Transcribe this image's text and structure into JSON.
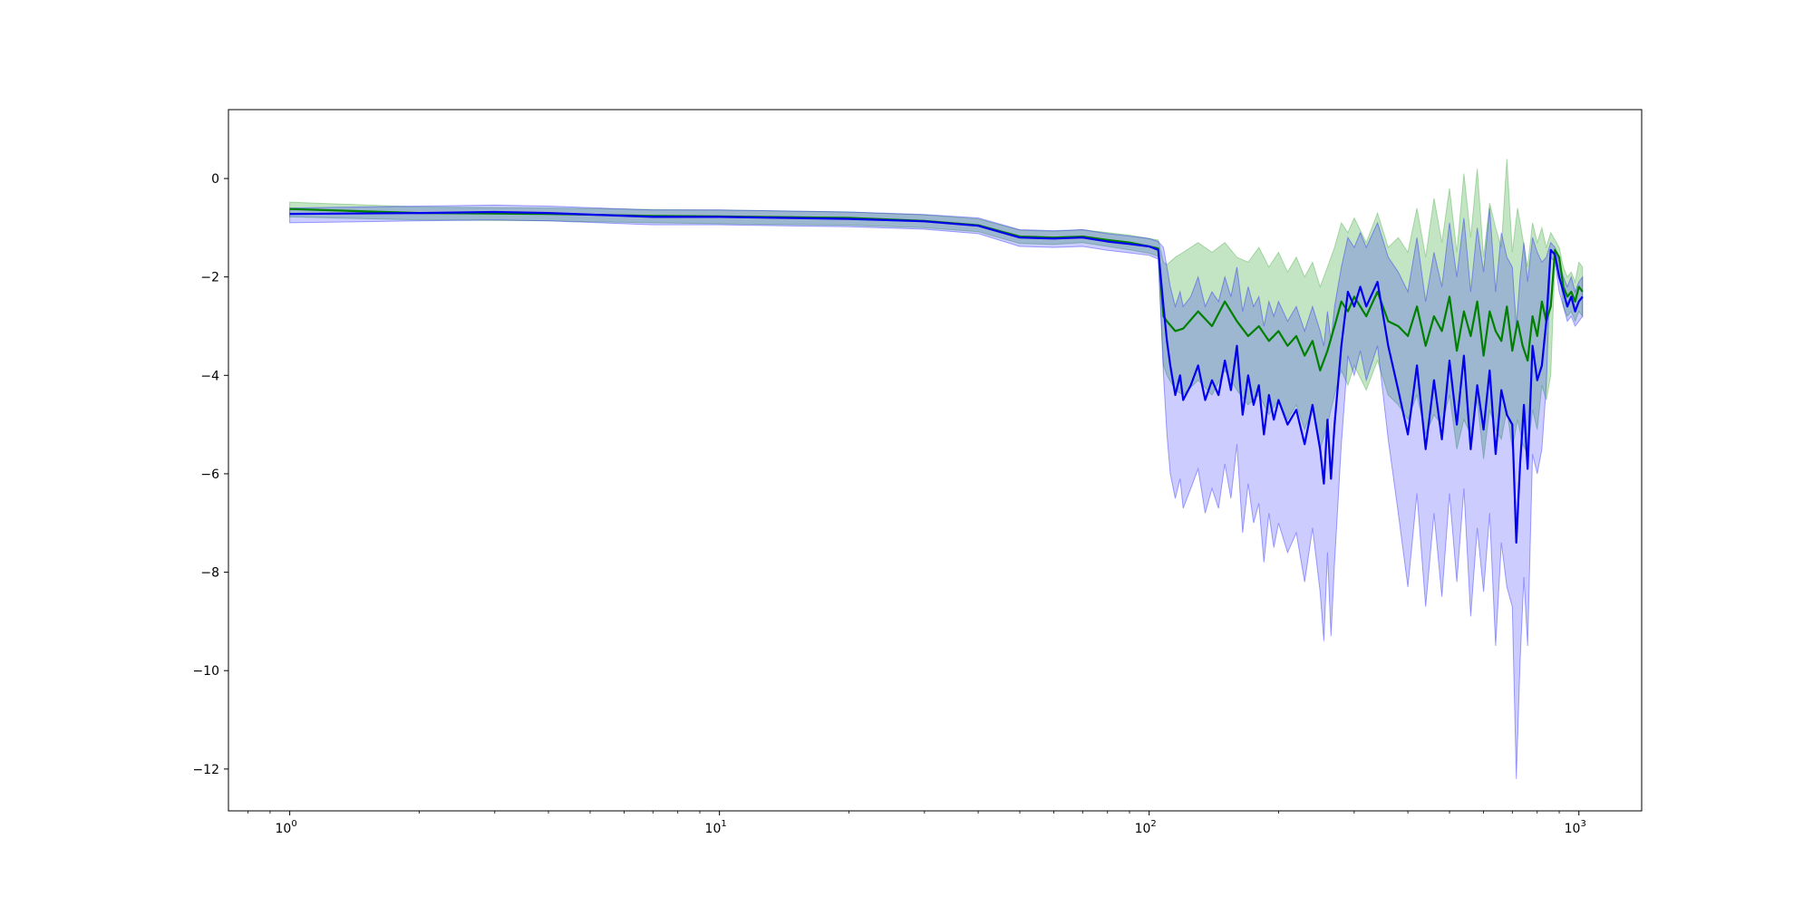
{
  "chart_data": {
    "type": "line",
    "title": "",
    "xlabel": "",
    "ylabel": "",
    "x_scale": "log",
    "xlim": [
      0.72,
      1400
    ],
    "ylim": [
      -12.85,
      1.4
    ],
    "grid": false,
    "legend": "none",
    "x_ticks": [
      {
        "value": 1,
        "base": "10",
        "exp": "0"
      },
      {
        "value": 10,
        "base": "10",
        "exp": "1"
      },
      {
        "value": 100,
        "base": "10",
        "exp": "2"
      },
      {
        "value": 1000,
        "base": "10",
        "exp": "3"
      }
    ],
    "y_ticks": [
      {
        "value": 0,
        "label": "0"
      },
      {
        "value": -2,
        "label": "−2"
      },
      {
        "value": -4,
        "label": "−4"
      },
      {
        "value": -6,
        "label": "−6"
      },
      {
        "value": -8,
        "label": "−8"
      },
      {
        "value": -10,
        "label": "−10"
      },
      {
        "value": -12,
        "label": "−12"
      }
    ],
    "series": [
      {
        "color": "#008000",
        "band_color": "#2ca02c",
        "band_opacity": 0.28,
        "x": [
          1,
          2,
          4,
          7,
          10,
          20,
          30,
          40,
          50,
          60,
          70,
          80,
          90,
          100,
          105,
          108,
          110,
          115,
          120,
          130,
          140,
          150,
          160,
          170,
          180,
          190,
          200,
          210,
          220,
          230,
          240,
          250,
          260,
          270,
          280,
          290,
          300,
          320,
          340,
          360,
          380,
          400,
          420,
          440,
          460,
          480,
          500,
          520,
          540,
          560,
          580,
          600,
          620,
          640,
          660,
          680,
          700,
          720,
          740,
          760,
          780,
          800,
          820,
          840,
          860,
          880,
          900,
          920,
          940,
          960,
          980,
          1000,
          1020
        ],
        "y": [
          -0.62,
          -0.7,
          -0.72,
          -0.76,
          -0.77,
          -0.8,
          -0.86,
          -0.95,
          -1.18,
          -1.2,
          -1.18,
          -1.25,
          -1.3,
          -1.38,
          -1.42,
          -2.8,
          -2.9,
          -3.1,
          -3.05,
          -2.7,
          -3.0,
          -2.5,
          -2.9,
          -3.2,
          -3.0,
          -3.3,
          -3.1,
          -3.4,
          -3.2,
          -3.6,
          -3.3,
          -3.9,
          -3.5,
          -3.0,
          -2.5,
          -2.7,
          -2.4,
          -2.8,
          -2.3,
          -2.9,
          -3.0,
          -3.2,
          -2.6,
          -3.4,
          -2.8,
          -3.1,
          -2.4,
          -3.5,
          -2.7,
          -3.2,
          -2.5,
          -3.6,
          -2.7,
          -3.1,
          -3.3,
          -2.6,
          -3.5,
          -2.9,
          -3.4,
          -3.7,
          -2.8,
          -3.2,
          -2.5,
          -2.9,
          -2.6,
          -1.45,
          -1.6,
          -2.2,
          -2.4,
          -2.3,
          -2.5,
          -2.2,
          -2.3
        ],
        "upper": [
          -0.48,
          -0.58,
          -0.6,
          -0.63,
          -0.64,
          -0.68,
          -0.74,
          -0.82,
          -1.05,
          -1.07,
          -1.04,
          -1.1,
          -1.15,
          -1.22,
          -1.25,
          -1.7,
          -1.75,
          -1.6,
          -1.5,
          -1.3,
          -1.5,
          -1.3,
          -1.6,
          -1.7,
          -1.4,
          -1.8,
          -1.5,
          -1.9,
          -1.6,
          -2.0,
          -1.7,
          -2.2,
          -1.8,
          -1.4,
          -0.9,
          -1.1,
          -0.8,
          -1.3,
          -0.7,
          -1.4,
          -1.2,
          -1.5,
          -0.6,
          -1.6,
          -0.4,
          -1.3,
          -0.2,
          -1.5,
          0.1,
          -1.2,
          0.2,
          -1.6,
          -0.5,
          -1.0,
          -1.4,
          0.4,
          -1.5,
          -0.6,
          -1.2,
          -1.8,
          -0.9,
          -1.3,
          -1.0,
          -1.4,
          -1.1,
          -1.25,
          -1.4,
          -1.8,
          -2.0,
          -1.9,
          -2.1,
          -1.7,
          -1.8
        ],
        "lower": [
          -0.78,
          -0.84,
          -0.86,
          -0.9,
          -0.92,
          -0.95,
          -1.0,
          -1.08,
          -1.32,
          -1.34,
          -1.3,
          -1.38,
          -1.45,
          -1.52,
          -1.58,
          -3.8,
          -4.0,
          -4.3,
          -4.4,
          -4.1,
          -4.4,
          -3.9,
          -4.3,
          -4.6,
          -4.4,
          -4.8,
          -4.5,
          -4.9,
          -4.6,
          -5.1,
          -4.7,
          -5.5,
          -5.0,
          -4.4,
          -3.9,
          -4.2,
          -3.8,
          -4.3,
          -3.7,
          -4.4,
          -4.6,
          -4.9,
          -4.4,
          -5.2,
          -4.8,
          -5.0,
          -4.4,
          -5.5,
          -4.9,
          -5.2,
          -4.5,
          -5.7,
          -4.7,
          -5.1,
          -5.3,
          -4.7,
          -5.5,
          -4.9,
          -5.4,
          -5.6,
          -4.7,
          -5.1,
          -4.2,
          -4.5,
          -4.0,
          -1.65,
          -1.8,
          -2.6,
          -2.8,
          -2.7,
          -2.9,
          -2.7,
          -2.8
        ]
      },
      {
        "color": "#0000ee",
        "band_color": "#0000ff",
        "band_opacity": 0.2,
        "x": [
          1,
          2,
          3,
          4,
          7,
          10,
          20,
          30,
          40,
          50,
          60,
          70,
          80,
          90,
          100,
          105,
          108,
          110,
          112,
          115,
          118,
          120,
          125,
          130,
          135,
          140,
          145,
          150,
          155,
          160,
          165,
          170,
          175,
          180,
          185,
          190,
          195,
          200,
          210,
          220,
          230,
          240,
          250,
          255,
          260,
          265,
          270,
          280,
          290,
          300,
          310,
          320,
          340,
          360,
          380,
          400,
          420,
          440,
          460,
          480,
          500,
          520,
          540,
          560,
          580,
          600,
          620,
          640,
          660,
          680,
          700,
          715,
          730,
          745,
          760,
          780,
          800,
          820,
          840,
          860,
          880,
          900,
          920,
          940,
          960,
          980,
          1000,
          1020
        ],
        "y": [
          -0.72,
          -0.7,
          -0.68,
          -0.7,
          -0.78,
          -0.78,
          -0.82,
          -0.87,
          -0.96,
          -1.2,
          -1.22,
          -1.2,
          -1.28,
          -1.33,
          -1.38,
          -1.45,
          -2.6,
          -3.3,
          -3.8,
          -4.4,
          -4.0,
          -4.5,
          -4.2,
          -3.8,
          -4.5,
          -4.1,
          -4.4,
          -3.7,
          -4.3,
          -3.4,
          -4.8,
          -4.0,
          -4.6,
          -4.2,
          -5.2,
          -4.4,
          -4.9,
          -4.5,
          -5.0,
          -4.7,
          -5.4,
          -4.6,
          -5.5,
          -6.2,
          -4.9,
          -6.1,
          -5.0,
          -3.4,
          -2.3,
          -2.6,
          -2.2,
          -2.6,
          -2.1,
          -3.4,
          -4.3,
          -5.2,
          -3.8,
          -5.5,
          -4.1,
          -5.3,
          -3.7,
          -5.0,
          -3.6,
          -5.5,
          -4.2,
          -5.1,
          -3.9,
          -5.6,
          -4.3,
          -4.8,
          -5.0,
          -7.4,
          -5.8,
          -4.6,
          -5.9,
          -3.4,
          -4.1,
          -3.8,
          -2.9,
          -1.45,
          -1.55,
          -2.0,
          -2.3,
          -2.6,
          -2.4,
          -2.7,
          -2.5,
          -2.4
        ],
        "upper": [
          -0.6,
          -0.56,
          -0.54,
          -0.56,
          -0.64,
          -0.64,
          -0.68,
          -0.73,
          -0.8,
          -1.04,
          -1.06,
          -1.04,
          -1.12,
          -1.17,
          -1.22,
          -1.28,
          -1.4,
          -1.8,
          -2.2,
          -2.6,
          -2.3,
          -2.6,
          -2.4,
          -2.0,
          -2.6,
          -2.3,
          -2.5,
          -2.0,
          -2.4,
          -1.8,
          -2.7,
          -2.2,
          -2.6,
          -2.4,
          -3.0,
          -2.5,
          -2.8,
          -2.5,
          -2.9,
          -2.6,
          -3.1,
          -2.6,
          -3.1,
          -3.4,
          -2.7,
          -3.3,
          -2.6,
          -1.8,
          -1.2,
          -1.4,
          -1.1,
          -1.4,
          -0.9,
          -1.6,
          -1.9,
          -2.3,
          -1.2,
          -2.5,
          -1.5,
          -2.2,
          -0.9,
          -2.0,
          -0.8,
          -2.3,
          -1.0,
          -1.9,
          -0.6,
          -2.3,
          -1.1,
          -1.6,
          -1.8,
          -3.0,
          -2.0,
          -1.3,
          -2.1,
          -1.2,
          -1.5,
          -1.7,
          -1.6,
          -1.3,
          -1.4,
          -1.7,
          -2.0,
          -2.2,
          -2.0,
          -2.3,
          -2.1,
          -2.0
        ],
        "lower": [
          -0.9,
          -0.86,
          -0.84,
          -0.86,
          -0.94,
          -0.94,
          -0.98,
          -1.03,
          -1.12,
          -1.38,
          -1.4,
          -1.38,
          -1.46,
          -1.51,
          -1.56,
          -1.64,
          -4.0,
          -5.2,
          -6.0,
          -6.5,
          -6.1,
          -6.7,
          -6.3,
          -5.9,
          -6.8,
          -6.3,
          -6.7,
          -5.8,
          -6.5,
          -5.4,
          -7.2,
          -6.2,
          -7.0,
          -6.6,
          -7.8,
          -6.8,
          -7.5,
          -7.0,
          -7.6,
          -7.2,
          -8.2,
          -7.1,
          -8.4,
          -9.4,
          -7.6,
          -9.3,
          -7.8,
          -5.4,
          -3.6,
          -4.0,
          -3.5,
          -4.1,
          -3.4,
          -5.3,
          -6.8,
          -8.3,
          -6.4,
          -8.7,
          -6.8,
          -8.5,
          -6.4,
          -8.2,
          -6.3,
          -8.9,
          -7.1,
          -8.4,
          -6.8,
          -9.5,
          -7.4,
          -8.3,
          -8.7,
          -12.2,
          -9.8,
          -8.1,
          -9.5,
          -5.6,
          -6.0,
          -5.5,
          -4.2,
          -1.6,
          -1.7,
          -2.3,
          -2.6,
          -2.9,
          -2.8,
          -3.0,
          -2.9,
          -2.8
        ]
      }
    ]
  }
}
